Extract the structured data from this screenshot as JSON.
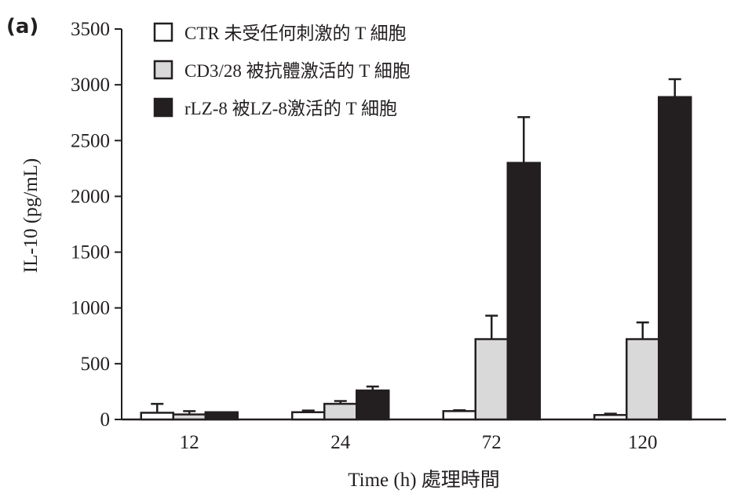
{
  "panel_label": "(a)",
  "chart_data": {
    "type": "bar",
    "title": "",
    "xlabel": "Time (h) 處理時間",
    "ylabel": "IL-10 (pg/mL)",
    "ylim": [
      0,
      3500
    ],
    "yticks": [
      0,
      500,
      1000,
      1500,
      2000,
      2500,
      3000,
      3500
    ],
    "categories": [
      "12",
      "24",
      "72",
      "120"
    ],
    "grid": false,
    "legend_position": "top-left",
    "series": [
      {
        "name": "CTR 未受任何刺激的 T 細胞",
        "color": "#ffffff",
        "values": [
          60,
          65,
          75,
          40
        ],
        "errors": [
          80,
          15,
          8,
          12
        ]
      },
      {
        "name": "CD3/28 被抗體激活的 T 細胞",
        "color": "#d9d9d9",
        "values": [
          45,
          140,
          720,
          720
        ],
        "errors": [
          30,
          25,
          210,
          150
        ]
      },
      {
        "name": "rLZ-8 被LZ-8激活的 T 細胞",
        "color": "#231f20",
        "values": [
          65,
          260,
          2300,
          2890
        ],
        "errors": [
          0,
          35,
          410,
          160
        ]
      }
    ]
  }
}
